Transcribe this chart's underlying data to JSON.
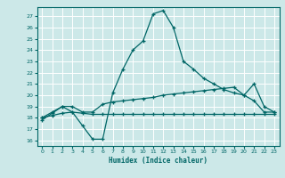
{
  "xlabel": "Humidex (Indice chaleur)",
  "bg_color": "#cce8e8",
  "grid_color": "#ffffff",
  "line_color": "#006666",
  "xlim": [
    -0.5,
    23.5
  ],
  "ylim": [
    15.5,
    27.8
  ],
  "x_ticks": [
    0,
    1,
    2,
    3,
    4,
    5,
    6,
    7,
    8,
    9,
    10,
    11,
    12,
    13,
    14,
    15,
    16,
    17,
    18,
    19,
    20,
    21,
    22,
    23
  ],
  "y_ticks": [
    16,
    17,
    18,
    19,
    20,
    21,
    22,
    23,
    24,
    25,
    26,
    27
  ],
  "line1_x": [
    0,
    1,
    2,
    3,
    4,
    5,
    6,
    7,
    8,
    9,
    10,
    11,
    12,
    13,
    14,
    15,
    16,
    17,
    18,
    19,
    20,
    21,
    22,
    23
  ],
  "line1_y": [
    17.8,
    18.4,
    19.0,
    18.5,
    17.3,
    16.1,
    16.1,
    20.2,
    22.3,
    24.0,
    24.8,
    27.2,
    27.5,
    26.0,
    23.0,
    22.3,
    21.5,
    21.0,
    20.5,
    20.2,
    20.0,
    21.0,
    19.0,
    18.5
  ],
  "line2_x": [
    0,
    1,
    2,
    3,
    4,
    5,
    6,
    7,
    8,
    9,
    10,
    11,
    12,
    13,
    14,
    15,
    16,
    17,
    18,
    19,
    20,
    21,
    22,
    23
  ],
  "line2_y": [
    18.0,
    18.5,
    19.0,
    19.0,
    18.5,
    18.5,
    19.2,
    19.4,
    19.5,
    19.6,
    19.7,
    19.8,
    20.0,
    20.1,
    20.2,
    20.3,
    20.4,
    20.5,
    20.6,
    20.7,
    20.0,
    19.5,
    18.5,
    18.5
  ],
  "line3_x": [
    0,
    1,
    2,
    3,
    4,
    5,
    6,
    7,
    8,
    9,
    10,
    11,
    12,
    13,
    14,
    15,
    16,
    17,
    18,
    19,
    20,
    21,
    22,
    23
  ],
  "line3_y": [
    18.0,
    18.2,
    18.4,
    18.5,
    18.4,
    18.3,
    18.3,
    18.3,
    18.3,
    18.3,
    18.3,
    18.3,
    18.3,
    18.3,
    18.3,
    18.3,
    18.3,
    18.3,
    18.3,
    18.3,
    18.3,
    18.3,
    18.3,
    18.3
  ]
}
